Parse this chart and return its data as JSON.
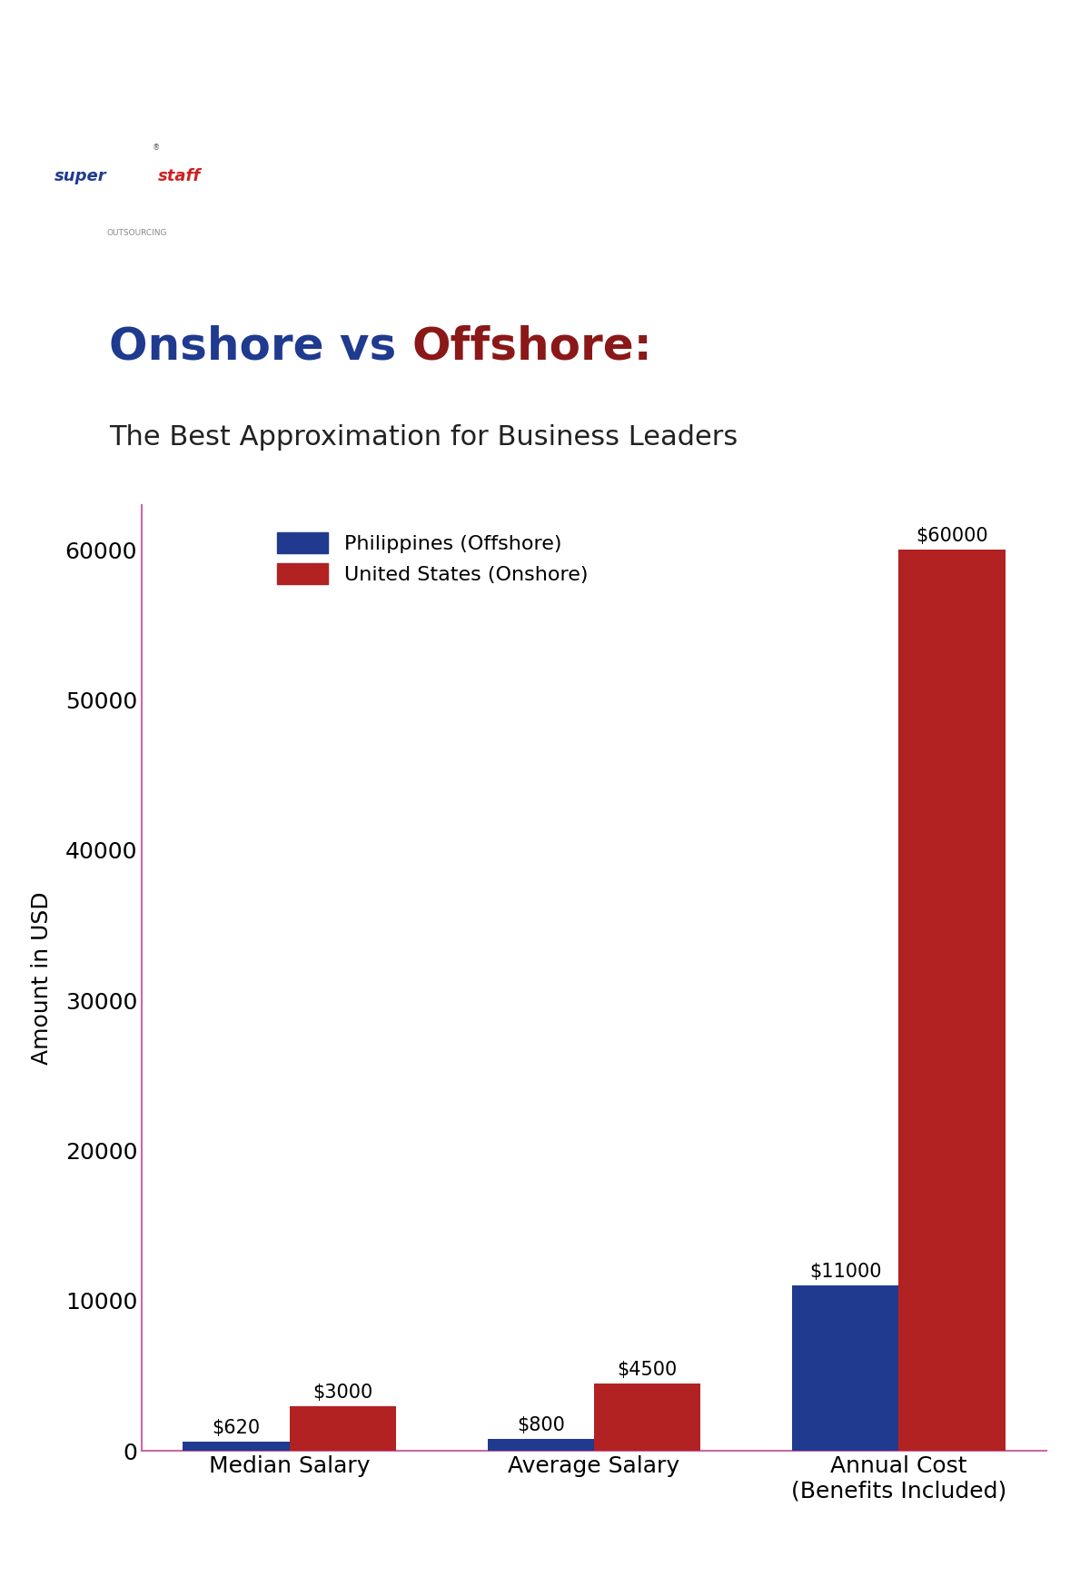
{
  "title_onshore": "Onshore vs ",
  "title_offshore": "Offshore:",
  "title_line2": "The Best Approximation for Business Leaders",
  "categories": [
    "Median Salary",
    "Average Salary",
    "Annual Cost\n(Benefits Included)"
  ],
  "offshore_values": [
    620,
    800,
    11000
  ],
  "onshore_values": [
    3000,
    4500,
    60000
  ],
  "offshore_labels": [
    "$620",
    "$800",
    "$11000"
  ],
  "onshore_labels": [
    "$3000",
    "$4500",
    "$60000"
  ],
  "offshore_color": "#1f3a8f",
  "onshore_color": "#b22222",
  "ylabel": "Amount in USD",
  "ylim": [
    0,
    63000
  ],
  "yticks": [
    0,
    10000,
    20000,
    30000,
    40000,
    50000,
    60000
  ],
  "legend_offshore": "Philippines (Offshore)",
  "legend_onshore": "United States (Onshore)",
  "bar_width": 0.35,
  "axis_color": "#cc66aa",
  "background_color": "#ffffff",
  "title_fontsize": 36,
  "subtitle_fontsize": 22,
  "tick_fontsize": 18,
  "ylabel_fontsize": 18,
  "legend_fontsize": 16,
  "annotation_fontsize": 15
}
